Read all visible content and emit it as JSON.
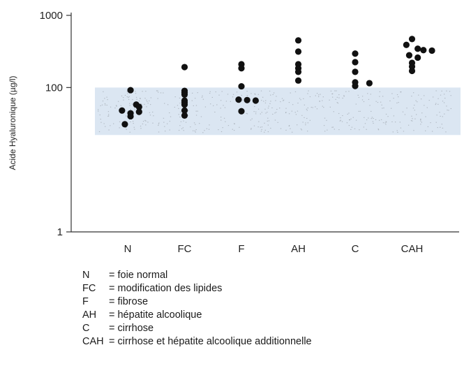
{
  "chart_data": {
    "type": "scatter",
    "title": "",
    "xlabel": "",
    "ylabel": "Acide Hyaluronique (µg/l)",
    "yscale": "log",
    "ylim": [
      1,
      1000
    ],
    "yticks": [
      {
        "value": 1,
        "label": "1"
      },
      {
        "value": 100,
        "label": "100"
      },
      {
        "value": 1000,
        "label": "1000"
      }
    ],
    "categories": [
      "N",
      "FC",
      "F",
      "AH",
      "C",
      "CAH"
    ],
    "normal_band": {
      "from": 22,
      "to": 100,
      "color": "#dbe6f2"
    },
    "series": [
      {
        "category": "N",
        "points": [
          92,
          58,
          54,
          48,
          46,
          44,
          40,
          31
        ],
        "offsets": [
          0.05,
          0.15,
          0.2,
          -0.1,
          0.2,
          0.05,
          0.05,
          -0.05
        ]
      },
      {
        "category": "FC",
        "points": [
          192,
          90,
          85,
          80,
          66,
          62,
          58,
          48,
          41
        ],
        "offsets": [
          0,
          0,
          0,
          0,
          0,
          0,
          0,
          0,
          0
        ]
      },
      {
        "category": "F",
        "points": [
          210,
          185,
          104,
          68,
          67,
          66,
          47
        ],
        "offsets": [
          0,
          0,
          0,
          -0.05,
          0.1,
          0.25,
          0
        ]
      },
      {
        "category": "AH",
        "points": [
          450,
          315,
          210,
          185,
          165,
          125
        ],
        "offsets": [
          0,
          0,
          0,
          0,
          0,
          0
        ]
      },
      {
        "category": "C",
        "points": [
          295,
          225,
          165,
          118,
          115,
          105
        ],
        "offsets": [
          0,
          0,
          0,
          0,
          0.25,
          0
        ]
      },
      {
        "category": "CAH",
        "points": [
          470,
          390,
          345,
          330,
          325,
          280,
          260,
          220,
          195,
          170
        ],
        "offsets": [
          0,
          -0.1,
          0.1,
          0.2,
          0.35,
          -0.05,
          0.1,
          0,
          0,
          0
        ]
      }
    ],
    "legend": [
      {
        "abbr": "N",
        "desc": "= foie normal"
      },
      {
        "abbr": "FC",
        "desc": "= modification des lipides"
      },
      {
        "abbr": "F",
        "desc": "= fibrose"
      },
      {
        "abbr": "AH",
        "desc": "= hépatite alcoolique"
      },
      {
        "abbr": "C",
        "desc": "= cirrhose"
      },
      {
        "abbr": "CAH",
        "desc": "= cirrhose et hépatite alcoolique additionnelle"
      }
    ],
    "colors": {
      "point": "#111111",
      "band": "#dbe6f2",
      "axis": "#333333"
    }
  }
}
